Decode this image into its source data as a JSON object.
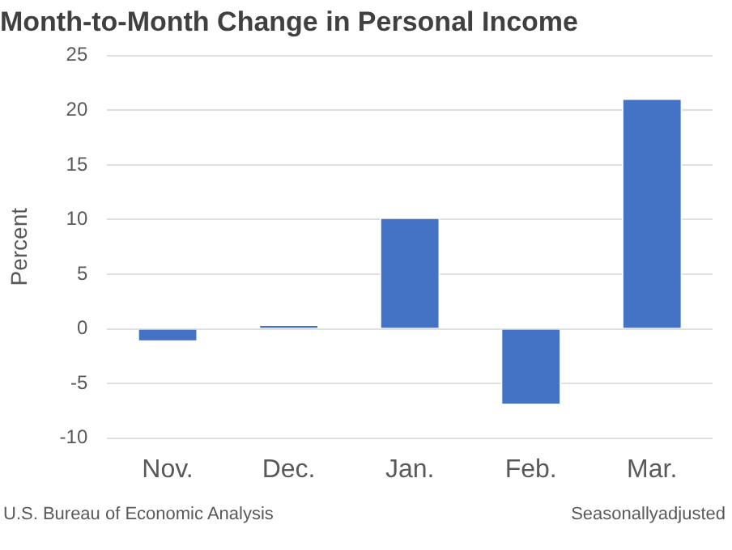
{
  "chart_data": {
    "type": "bar",
    "title": "Month-to-Month Change in Personal Income",
    "ylabel": "Percent",
    "categories": [
      "Nov.",
      "Dec.",
      "Jan.",
      "Feb.",
      "Mar."
    ],
    "values": [
      -1.2,
      0.4,
      10.2,
      -7.0,
      21.1
    ],
    "color": "#4472c4",
    "ylim": [
      -10,
      25
    ],
    "yticks": [
      -10,
      -5,
      0,
      5,
      10,
      15,
      20,
      25
    ],
    "grid": "y",
    "legend": false,
    "annotations": [
      "U.S. Bureau of Economic Analysis",
      "Seasonallyadjusted"
    ]
  }
}
